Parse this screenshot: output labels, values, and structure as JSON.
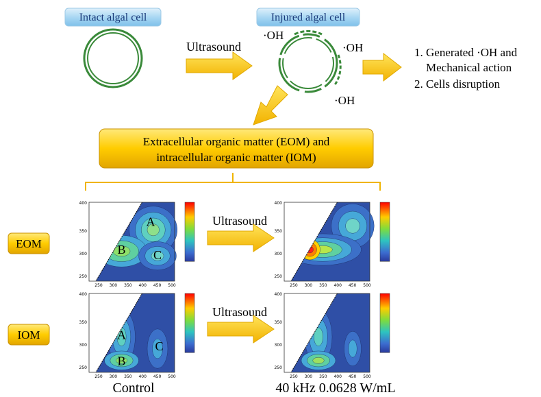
{
  "top": {
    "intact_label": "Intact algal cell",
    "injured_label": "Injured algal cell",
    "ultrasound_label": "Ultrasound",
    "oh_labels": [
      "·OH",
      "·OH",
      "·OH"
    ],
    "results": [
      "1. Generated ·OH and",
      "Mechanical action",
      "2. Cells disruption"
    ]
  },
  "matter_box": [
    "Extracellular organic matter (EOM) and",
    "intracellular organic matter (IOM)"
  ],
  "rows": [
    {
      "label": "EOM",
      "ultrasound_label": "Ultrasound",
      "peaks": [
        "A",
        "B",
        "C"
      ]
    },
    {
      "label": "IOM",
      "ultrasound_label": "Ultrasound",
      "peaks": [
        "A",
        "B",
        "C"
      ]
    }
  ],
  "axes": {
    "y_ticks": [
      "400",
      "350",
      "300",
      "250"
    ],
    "x_ticks": [
      "250",
      "300",
      "350",
      "400",
      "450",
      "500"
    ]
  },
  "captions": [
    "Control",
    "40 kHz  0.0628 W/mL"
  ]
}
